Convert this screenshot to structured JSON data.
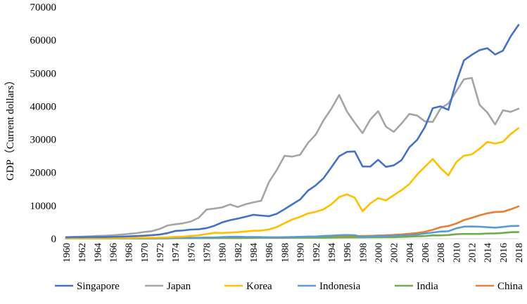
{
  "chart_data": {
    "type": "line",
    "title": "",
    "xlabel": "",
    "ylabel": "GDP（Current dollars）",
    "ylim": [
      0,
      70000
    ],
    "yticks": [
      0,
      10000,
      20000,
      30000,
      40000,
      50000,
      60000,
      70000
    ],
    "ytick_labels": [
      "0",
      "10000",
      "20000",
      "30000",
      "40000",
      "50000",
      "60000",
      "70000"
    ],
    "x": [
      1960,
      1961,
      1962,
      1963,
      1964,
      1965,
      1966,
      1967,
      1968,
      1969,
      1970,
      1971,
      1972,
      1973,
      1974,
      1975,
      1976,
      1977,
      1978,
      1979,
      1980,
      1981,
      1982,
      1983,
      1984,
      1985,
      1986,
      1987,
      1988,
      1989,
      1990,
      1991,
      1992,
      1993,
      1994,
      1995,
      1996,
      1997,
      1998,
      1999,
      2000,
      2001,
      2002,
      2003,
      2004,
      2005,
      2006,
      2007,
      2008,
      2009,
      2010,
      2011,
      2012,
      2013,
      2014,
      2015,
      2016,
      2017,
      2018
    ],
    "xtick_labels": [
      "1960",
      "1962",
      "1964",
      "1966",
      "1968",
      "1970",
      "1972",
      "1974",
      "1976",
      "1978",
      "1980",
      "1982",
      "1984",
      "1986",
      "1988",
      "1990",
      "1992",
      "1994",
      "1996",
      "1998",
      "2000",
      "2002",
      "2004",
      "2006",
      "2008",
      "2010",
      "2012",
      "2014",
      "2016",
      "2018"
    ],
    "legend_position": "bottom",
    "grid": false,
    "series": [
      {
        "name": "Singapore",
        "color": "#4472c4",
        "values": [
          428,
          449,
          472,
          511,
          485,
          517,
          567,
          626,
          708,
          812,
          925,
          1070,
          1264,
          1687,
          2340,
          2490,
          2759,
          2846,
          3194,
          3901,
          4929,
          5596,
          6077,
          6633,
          7228,
          7002,
          6799,
          7539,
          8917,
          10394,
          11862,
          14502,
          16136,
          18290,
          21553,
          24915,
          26233,
          26376,
          21829,
          21796,
          23852,
          21700,
          22159,
          23730,
          27608,
          29870,
          33769,
          39432,
          40008,
          38927,
          47237,
          53891,
          55546,
          56967,
          57563,
          55647,
          56828,
          61176,
          64582
        ]
      },
      {
        "name": "Japan",
        "color": "#a5a5a5",
        "values": [
          479,
          563,
          634,
          717,
          835,
          919,
          1058,
          1228,
          1450,
          1669,
          2037,
          2272,
          2967,
          3998,
          4354,
          4659,
          5197,
          6335,
          8821,
          9105,
          9463,
          10361,
          9578,
          10425,
          10984,
          11465,
          17112,
          20745,
          25052,
          24813,
          25371,
          28925,
          31465,
          35766,
          39269,
          43440,
          38437,
          35022,
          31903,
          36027,
          38532,
          33846,
          32289,
          34808,
          37689,
          37218,
          35434,
          35275,
          39339,
          40855,
          44508,
          48168,
          48603,
          40455,
          38109,
          34524,
          38794,
          38332,
          39290
        ]
      },
      {
        "name": "Korea",
        "color": "#ffc000",
        "values": [
          158,
          94,
          106,
          146,
          124,
          109,
          134,
          161,
          198,
          244,
          279,
          301,
          324,
          406,
          563,
          617,
          834,
          1055,
          1405,
          1783,
          1704,
          1870,
          1977,
          2180,
          2390,
          2457,
          2803,
          3511,
          4686,
          5818,
          6610,
          7637,
          8127,
          8885,
          10385,
          12565,
          13403,
          12398,
          8282,
          10672,
          12257,
          11561,
          13165,
          14673,
          16496,
          19402,
          21743,
          24086,
          21345,
          19122,
          23079,
          25096,
          25459,
          27180,
          29250,
          28737,
          29288,
          31616,
          33422
        ]
      },
      {
        "name": "Indonesia",
        "color": "#5b9bd5",
        "values": [
          60,
          70,
          80,
          90,
          95,
          55,
          52,
          55,
          62,
          72,
          80,
          82,
          90,
          130,
          185,
          220,
          250,
          300,
          350,
          350,
          490,
          570,
          590,
          520,
          510,
          490,
          450,
          440,
          480,
          520,
          580,
          640,
          680,
          830,
          920,
          1040,
          1140,
          1060,
          460,
          670,
          780,
          750,
          890,
          1060,
          1140,
          1260,
          1590,
          1860,
          2170,
          2260,
          3120,
          3640,
          3700,
          3620,
          3490,
          3330,
          3560,
          3840,
          3890
        ]
      },
      {
        "name": "India",
        "color": "#70ad47",
        "values": [
          82,
          85,
          90,
          101,
          115,
          119,
          90,
          96,
          99,
          107,
          112,
          118,
          122,
          143,
          163,
          158,
          161,
          186,
          206,
          224,
          267,
          270,
          274,
          291,
          277,
          297,
          310,
          340,
          355,
          347,
          368,
          303,
          317,
          301,
          346,
          374,
          400,
          415,
          413,
          442,
          443,
          452,
          471,
          546,
          627,
          714,
          807,
          1028,
          999,
          1102,
          1358,
          1458,
          1444,
          1450,
          1574,
          1606,
          1733,
          1981,
          2010
        ]
      },
      {
        "name": "China",
        "color": "#ed7d31",
        "values": [
          90,
          76,
          70,
          74,
          85,
          98,
          104,
          96,
          91,
          100,
          113,
          118,
          132,
          157,
          160,
          178,
          165,
          185,
          156,
          184,
          195,
          197,
          203,
          225,
          251,
          294,
          281,
          252,
          284,
          311,
          318,
          333,
          366,
          377,
          473,
          610,
          709,
          782,
          829,
          873,
          959,
          1053,
          1149,
          1289,
          1509,
          1753,
          2099,
          2695,
          3468,
          3832,
          4550,
          5618,
          6317,
          7051,
          7679,
          8067,
          8148,
          8879,
          9771
        ]
      }
    ]
  }
}
